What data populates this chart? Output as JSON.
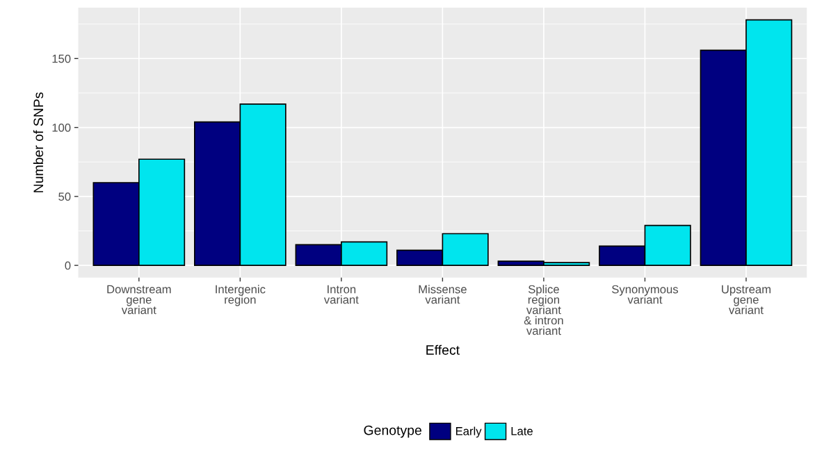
{
  "chart_data": {
    "type": "bar",
    "xlabel": "Effect",
    "ylabel": "Number of SNPs",
    "legend_title": "Genotype",
    "categories": [
      "Downstream\ngene\nvariant",
      "Intergenic\nregion",
      "Intron\nvariant",
      "Missense\nvariant",
      "Splice\nregion\nvariant\n& intron\nvariant",
      "Synonymous\nvariant",
      "Upstream\ngene\nvariant"
    ],
    "series": [
      {
        "name": "Early",
        "color": "#000080",
        "values": [
          60,
          104,
          15,
          11,
          3,
          14,
          156
        ]
      },
      {
        "name": "Late",
        "color": "#00e5ee",
        "values": [
          77,
          117,
          17,
          23,
          2,
          29,
          178
        ]
      }
    ],
    "ylim": [
      -8.9,
      186.9
    ],
    "yticks": [
      0,
      50,
      100,
      150
    ],
    "grid": true,
    "legend": "bottom"
  }
}
